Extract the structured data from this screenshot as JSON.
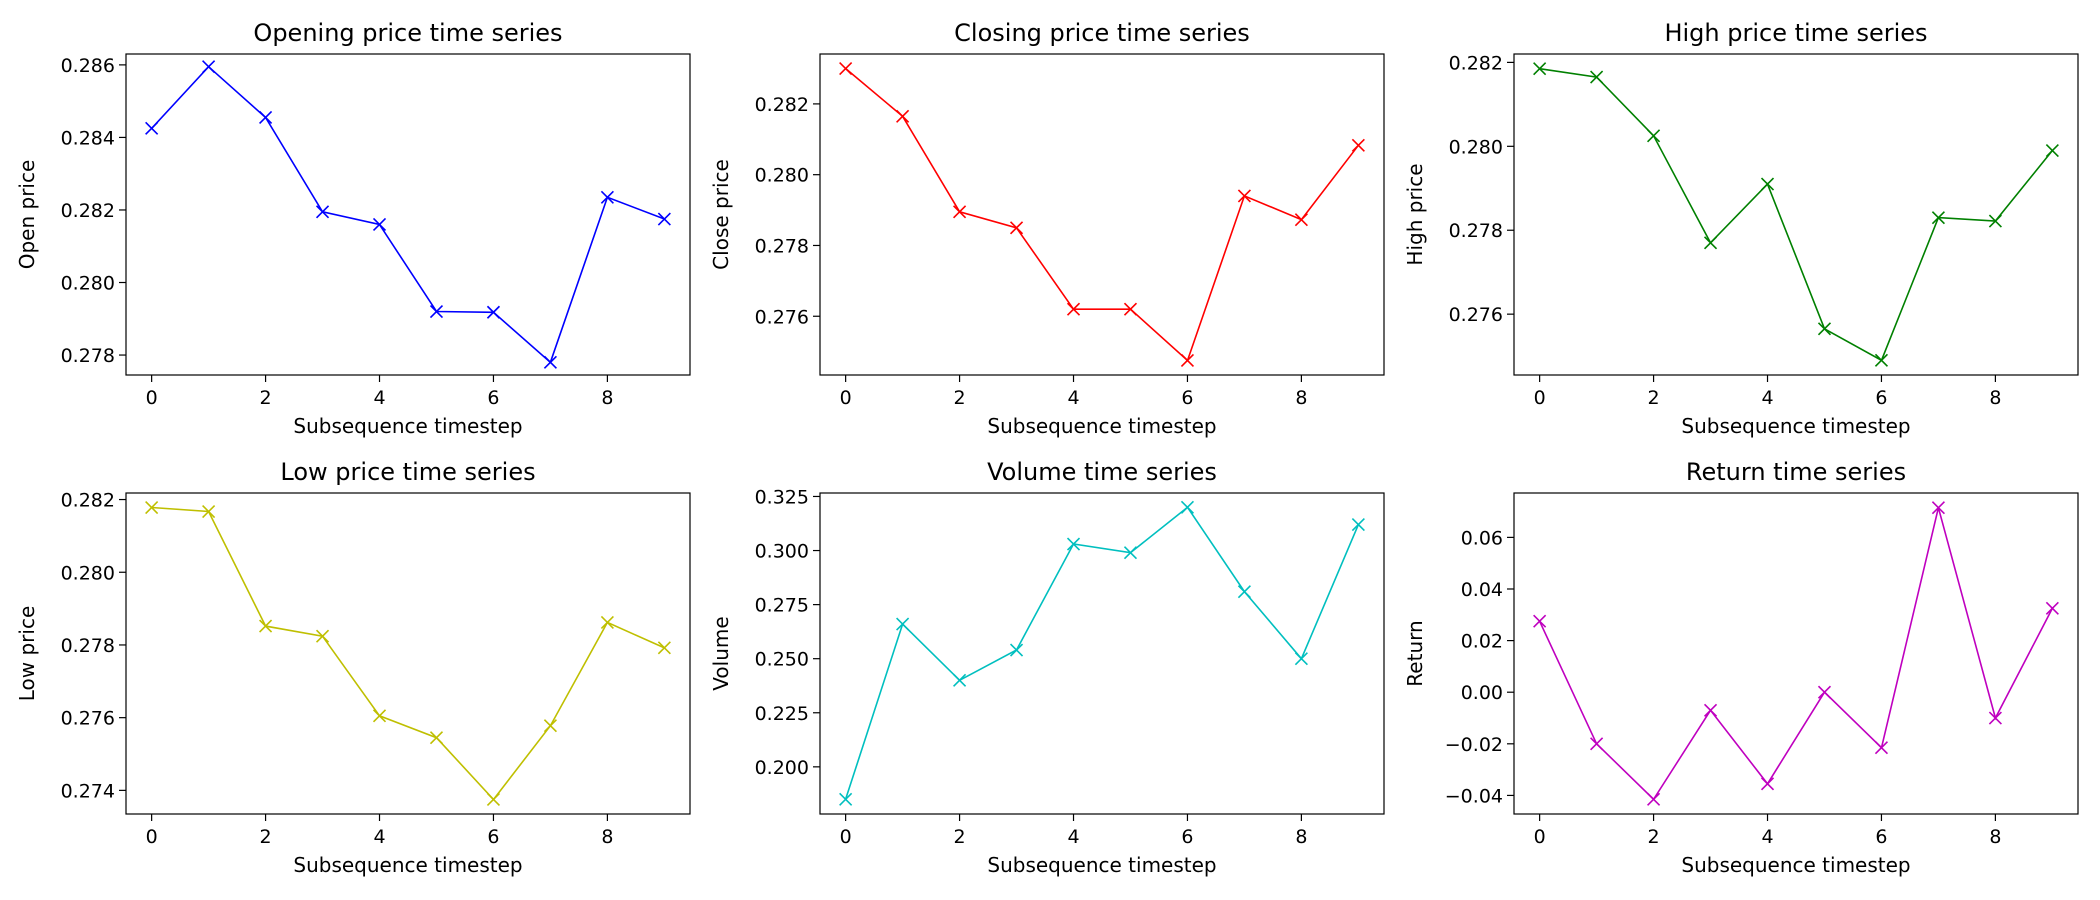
{
  "chart_data": [
    {
      "type": "line",
      "title": "Opening price time series",
      "xlabel": "Subsequence timestep",
      "ylabel": "Open price",
      "color": "#0000ff",
      "marker": "x",
      "x": [
        0,
        1,
        2,
        3,
        4,
        5,
        6,
        7,
        8,
        9
      ],
      "values": [
        0.28425,
        0.28595,
        0.28455,
        0.28195,
        0.2816,
        0.2792,
        0.27918,
        0.2778,
        0.28235,
        0.28175
      ],
      "xlim": [
        -0.45,
        9.45
      ],
      "ylim": [
        0.27745,
        0.2863
      ],
      "xticks": [
        0,
        2,
        4,
        6,
        8
      ],
      "xtick_labels": [
        "0",
        "2",
        "4",
        "6",
        "8"
      ],
      "yticks": [
        0.278,
        0.28,
        0.282,
        0.284,
        0.286
      ],
      "ytick_labels": [
        "0.278",
        "0.280",
        "0.282",
        "0.284",
        "0.286"
      ]
    },
    {
      "type": "line",
      "title": "Closing price time series",
      "xlabel": "Subsequence timestep",
      "ylabel": "Close price",
      "color": "#ff0000",
      "marker": "x",
      "x": [
        0,
        1,
        2,
        3,
        4,
        5,
        6,
        7,
        8,
        9
      ],
      "values": [
        0.283,
        0.28165,
        0.27895,
        0.2785,
        0.2762,
        0.2762,
        0.27475,
        0.2794,
        0.27873,
        0.28083
      ],
      "xlim": [
        -0.45,
        9.45
      ],
      "ylim": [
        0.27434,
        0.28341
      ],
      "xticks": [
        0,
        2,
        4,
        6,
        8
      ],
      "xtick_labels": [
        "0",
        "2",
        "4",
        "6",
        "8"
      ],
      "yticks": [
        0.276,
        0.278,
        0.28,
        0.282
      ],
      "ytick_labels": [
        "0.276",
        "0.278",
        "0.280",
        "0.282"
      ]
    },
    {
      "type": "line",
      "title": "High price time series",
      "xlabel": "Subsequence timestep",
      "ylabel": "High price",
      "color": "#008000",
      "marker": "x",
      "x": [
        0,
        1,
        2,
        3,
        4,
        5,
        6,
        7,
        8,
        9
      ],
      "values": [
        0.28185,
        0.28165,
        0.28025,
        0.2777,
        0.2791,
        0.27565,
        0.2749,
        0.2783,
        0.27822,
        0.2799
      ],
      "xlim": [
        -0.45,
        9.45
      ],
      "ylim": [
        0.27455,
        0.2822
      ],
      "xticks": [
        0,
        2,
        4,
        6,
        8
      ],
      "xtick_labels": [
        "0",
        "2",
        "4",
        "6",
        "8"
      ],
      "yticks": [
        0.276,
        0.278,
        0.28,
        0.282
      ],
      "ytick_labels": [
        "0.276",
        "0.278",
        "0.280",
        "0.282"
      ]
    },
    {
      "type": "line",
      "title": "Low price time series",
      "xlabel": "Subsequence timestep",
      "ylabel": "Low price",
      "color": "#bfbf00",
      "marker": "x",
      "x": [
        0,
        1,
        2,
        3,
        4,
        5,
        6,
        7,
        8,
        9
      ],
      "values": [
        0.28178,
        0.28167,
        0.27852,
        0.27824,
        0.27605,
        0.27545,
        0.27375,
        0.27578,
        0.27862,
        0.27792
      ],
      "xlim": [
        -0.45,
        9.45
      ],
      "ylim": [
        0.27335,
        0.28218
      ],
      "xticks": [
        0,
        2,
        4,
        6,
        8
      ],
      "xtick_labels": [
        "0",
        "2",
        "4",
        "6",
        "8"
      ],
      "yticks": [
        0.274,
        0.276,
        0.278,
        0.28,
        0.282
      ],
      "ytick_labels": [
        "0.274",
        "0.276",
        "0.278",
        "0.280",
        "0.282"
      ]
    },
    {
      "type": "line",
      "title": "Volume time series",
      "xlabel": "Subsequence timestep",
      "ylabel": "Volume",
      "color": "#00bfbf",
      "marker": "x",
      "x": [
        0,
        1,
        2,
        3,
        4,
        5,
        6,
        7,
        8,
        9
      ],
      "values": [
        0.185,
        0.266,
        0.24,
        0.254,
        0.303,
        0.299,
        0.32,
        0.281,
        0.25,
        0.312
      ],
      "xlim": [
        -0.45,
        9.45
      ],
      "ylim": [
        0.1782,
        0.3266
      ],
      "xticks": [
        0,
        2,
        4,
        6,
        8
      ],
      "xtick_labels": [
        "0",
        "2",
        "4",
        "6",
        "8"
      ],
      "yticks": [
        0.2,
        0.225,
        0.25,
        0.275,
        0.3,
        0.325
      ],
      "ytick_labels": [
        "0.200",
        "0.225",
        "0.250",
        "0.275",
        "0.300",
        "0.325"
      ]
    },
    {
      "type": "line",
      "title": "Return time series",
      "xlabel": "Subsequence timestep",
      "ylabel": "Return",
      "color": "#bf00bf",
      "marker": "x",
      "x": [
        0,
        1,
        2,
        3,
        4,
        5,
        6,
        7,
        8,
        9
      ],
      "values": [
        0.0275,
        -0.02,
        -0.0415,
        -0.007,
        -0.0355,
        0.0,
        -0.0215,
        0.0715,
        -0.01,
        0.0325
      ],
      "xlim": [
        -0.45,
        9.45
      ],
      "ylim": [
        -0.0472,
        0.0772
      ],
      "xticks": [
        0,
        2,
        4,
        6,
        8
      ],
      "xtick_labels": [
        "0",
        "2",
        "4",
        "6",
        "8"
      ],
      "yticks": [
        -0.04,
        -0.02,
        0.0,
        0.02,
        0.04,
        0.06
      ],
      "ytick_labels": [
        "−0.04",
        "−0.02",
        "0.00",
        "0.02",
        "0.04",
        "0.06"
      ]
    }
  ]
}
